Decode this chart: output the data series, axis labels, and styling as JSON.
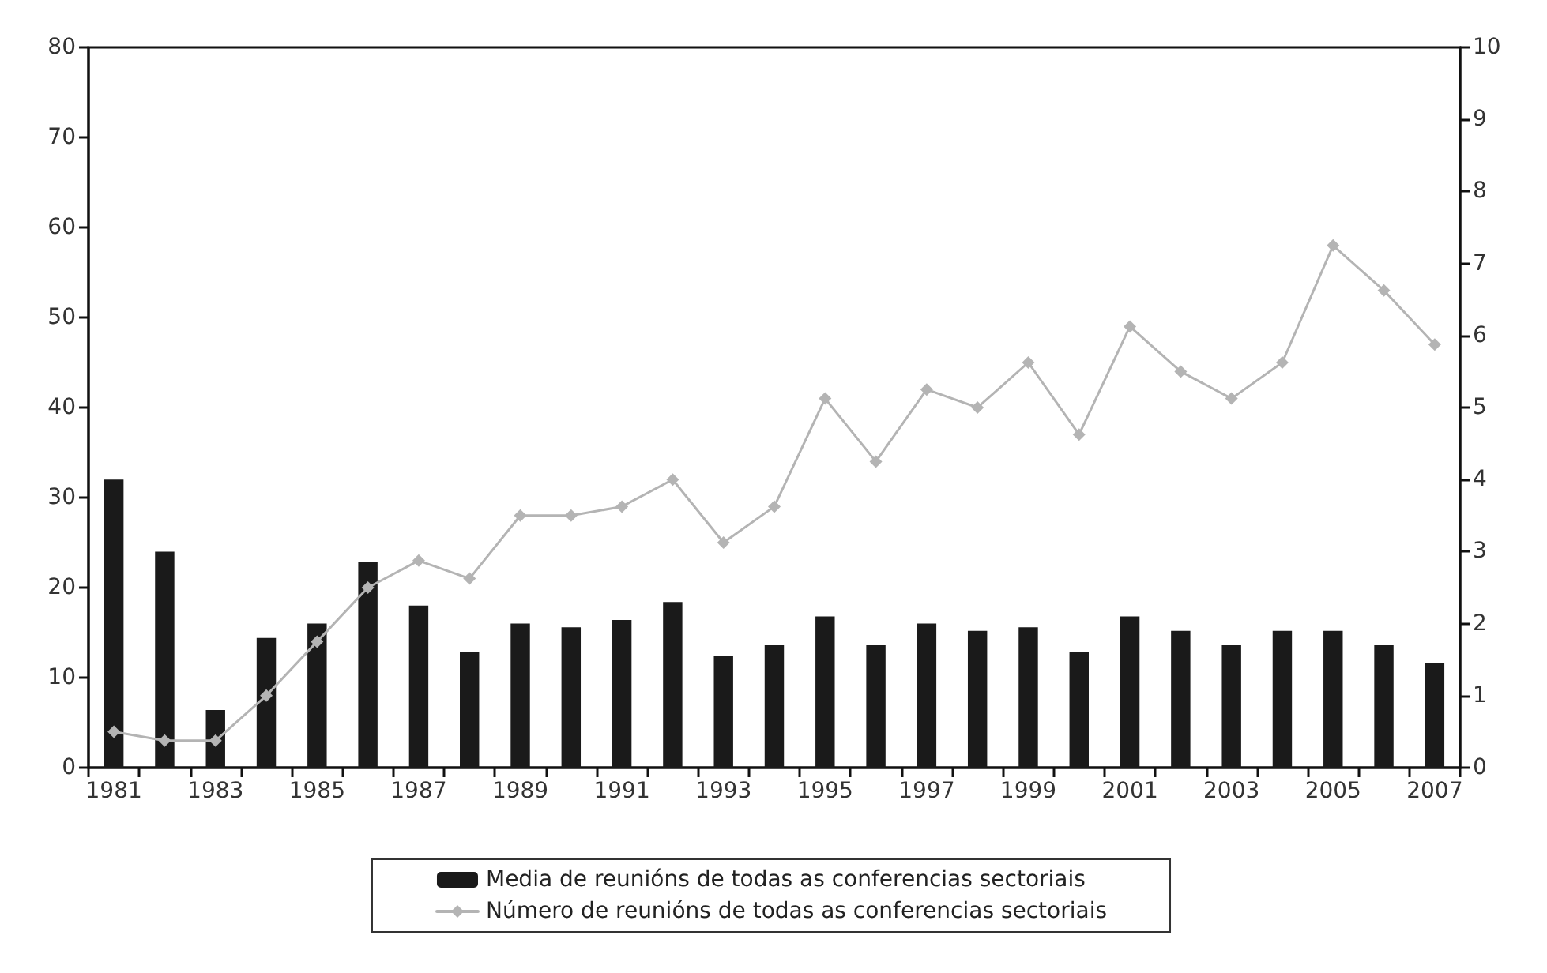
{
  "chart_data": {
    "type": "bar",
    "categories": [
      "1981",
      null,
      "1983",
      null,
      "1985",
      null,
      "1987",
      null,
      "1989",
      null,
      "1991",
      null,
      "1993",
      null,
      "1995",
      null,
      "1997",
      null,
      "1999",
      null,
      "2001",
      null,
      "2003",
      null,
      "2005",
      null,
      "2007"
    ],
    "series": [
      {
        "name": "Media de reunións de todas as conferencias sectoriais",
        "axis": "y2",
        "color": "#1a1a1a",
        "values": [
          4.0,
          3.0,
          0.8,
          1.8,
          2.0,
          2.85,
          2.25,
          1.6,
          2.0,
          1.95,
          2.05,
          2.3,
          1.55,
          1.7,
          2.1,
          1.7,
          2.0,
          1.9,
          1.95,
          1.6,
          2.1,
          1.9,
          1.7,
          1.9,
          1.9,
          1.7,
          1.45
        ]
      },
      {
        "name": "Número de reunións de todas as conferencias sectoriais",
        "type": "line",
        "color": "#b4b4b4",
        "values": [
          4,
          3,
          3,
          8,
          14,
          20,
          23,
          21,
          28,
          28,
          29,
          32,
          25,
          29,
          41,
          34,
          42,
          40,
          45,
          37,
          49,
          44,
          41,
          45,
          58,
          53,
          47
        ]
      }
    ],
    "ylim": [
      0,
      80
    ],
    "yticks": [
      0,
      10,
      20,
      30,
      40,
      50,
      60,
      70,
      80
    ],
    "y2lim": [
      0,
      10
    ],
    "y2ticks": [
      0,
      1,
      2,
      3,
      4,
      5,
      6,
      7,
      8,
      9,
      10
    ],
    "grid": false,
    "legend": "bottom",
    "marker": "diamond",
    "line_style": "solid"
  }
}
